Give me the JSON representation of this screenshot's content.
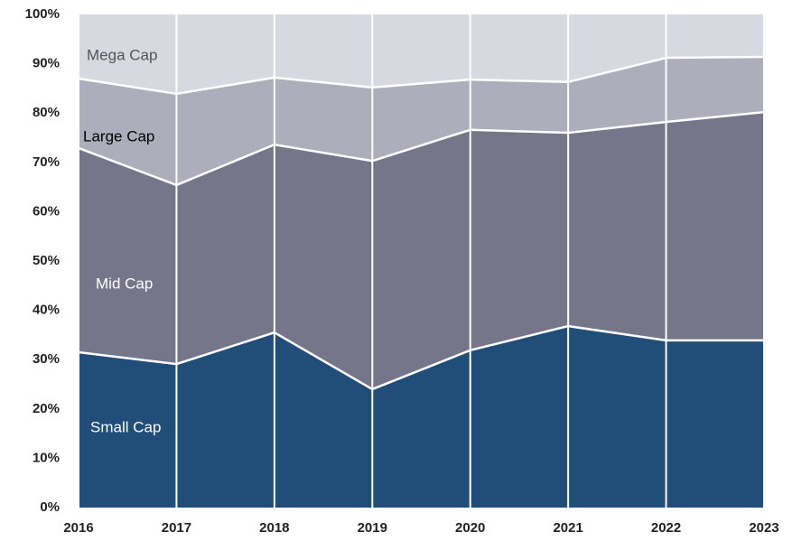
{
  "chart_data": {
    "type": "stacked_area",
    "x": [
      2016,
      2017,
      2018,
      2019,
      2020,
      2021,
      2022,
      2023
    ],
    "xlim": [
      2016,
      2023
    ],
    "xticks": [
      2016,
      2017,
      2018,
      2019,
      2020,
      2021,
      2022,
      2023
    ],
    "ylim": [
      0,
      100
    ],
    "yticks": [
      {
        "value": 0,
        "label": "0%"
      },
      {
        "value": 10,
        "label": "10%"
      },
      {
        "value": 20,
        "label": "20%"
      },
      {
        "value": 30,
        "label": "30%"
      },
      {
        "value": 40,
        "label": "40%"
      },
      {
        "value": 50,
        "label": "50%"
      },
      {
        "value": 60,
        "label": "60%"
      },
      {
        "value": 70,
        "label": "70%"
      },
      {
        "value": 80,
        "label": "80%"
      },
      {
        "value": 90,
        "label": "90%"
      },
      {
        "value": 100,
        "label": "100%"
      }
    ],
    "series": [
      {
        "name": "Small Cap",
        "color": "#204e79",
        "values": [
          31.5,
          29.1,
          35.5,
          24.0,
          31.9,
          36.8,
          33.9,
          33.9
        ]
      },
      {
        "name": "Mid Cap",
        "color": "#76768a",
        "values": [
          41.4,
          36.3,
          38.1,
          46.3,
          44.7,
          39.2,
          44.3,
          46.3
        ]
      },
      {
        "name": "Large Cap",
        "color": "#adadbb",
        "values": [
          14.1,
          18.5,
          13.6,
          14.9,
          10.2,
          10.3,
          13.0,
          11.2
        ]
      },
      {
        "name": "Mega Cap",
        "color": "#d8d8e0",
        "values": [
          13.0,
          16.1,
          12.8,
          14.8,
          13.2,
          13.7,
          8.8,
          8.6
        ]
      }
    ]
  }
}
